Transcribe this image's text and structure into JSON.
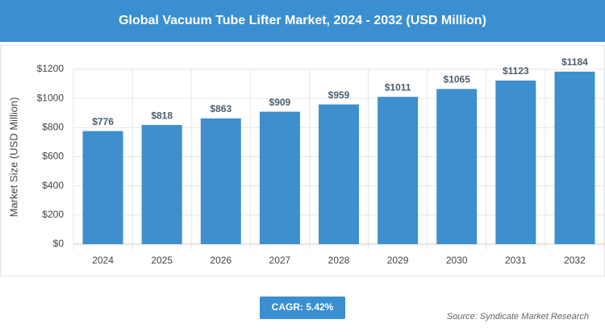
{
  "chart_data": {
    "type": "bar",
    "title": "Global Vacuum Tube Lifter Market, 2024 - 2032 (USD Million)",
    "y_label": "Market Size (USD Million)",
    "categories": [
      "2024",
      "2025",
      "2026",
      "2027",
      "2028",
      "2029",
      "2030",
      "2031",
      "2032"
    ],
    "values": [
      776,
      818,
      863,
      909,
      959,
      1011,
      1065,
      1123,
      1184
    ],
    "value_labels": [
      "$776",
      "$818",
      "$863",
      "$909",
      "$959",
      "$1011",
      "$1065",
      "$1123",
      "$1184"
    ],
    "color": "#3d8fce",
    "ylim": [
      0,
      1200
    ],
    "yticks": [
      {
        "value": 0,
        "label": "$0"
      },
      {
        "value": 200,
        "label": "$200"
      },
      {
        "value": 400,
        "label": "$400"
      },
      {
        "value": 600,
        "label": "$600"
      },
      {
        "value": 800,
        "label": "$800"
      },
      {
        "value": 1000,
        "label": "$1000"
      },
      {
        "value": 1200,
        "label": "$1200"
      }
    ],
    "grid": true,
    "annotations": [
      "CAGR: 5.42%",
      "Source: Syndicate Market Research"
    ]
  }
}
